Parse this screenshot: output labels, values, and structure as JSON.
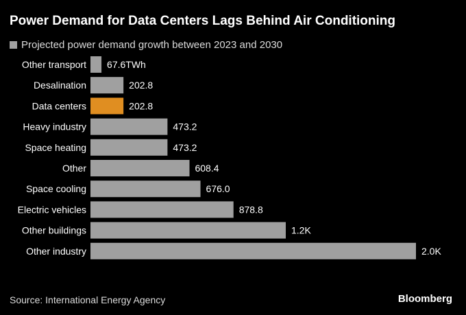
{
  "title": "Power Demand for Data Centers Lags Behind Air Conditioning",
  "footer": {
    "source": "Source: International Energy Agency",
    "brand": "Bloomberg"
  },
  "colors": {
    "default_bar": "#a0a0a0",
    "highlight_bar": "#e08e21",
    "background": "#000000"
  },
  "chart_data": {
    "type": "bar",
    "orientation": "horizontal",
    "title": "Power Demand for Data Centers Lags Behind Air Conditioning",
    "legend": [
      {
        "name": "Projected power demand growth between 2023 and 2030",
        "color": "#a0a0a0"
      }
    ],
    "unit": "TWh",
    "categories": [
      "Other transport",
      "Desalination",
      "Data centers",
      "Heavy industry",
      "Space heating",
      "Other",
      "Space cooling",
      "Electric vehicles",
      "Other buildings",
      "Other industry"
    ],
    "values": [
      67.6,
      202.8,
      202.8,
      473.2,
      473.2,
      608.4,
      676.0,
      878.8,
      1200,
      2000
    ],
    "labels": [
      "67.6TWh",
      "202.8",
      "202.8",
      "473.2",
      "473.2",
      "608.4",
      "676.0",
      "878.8",
      "1.2K",
      "2.0K"
    ],
    "highlight": [
      "Data centers"
    ],
    "xlim": [
      0,
      2000
    ],
    "grid": false
  }
}
